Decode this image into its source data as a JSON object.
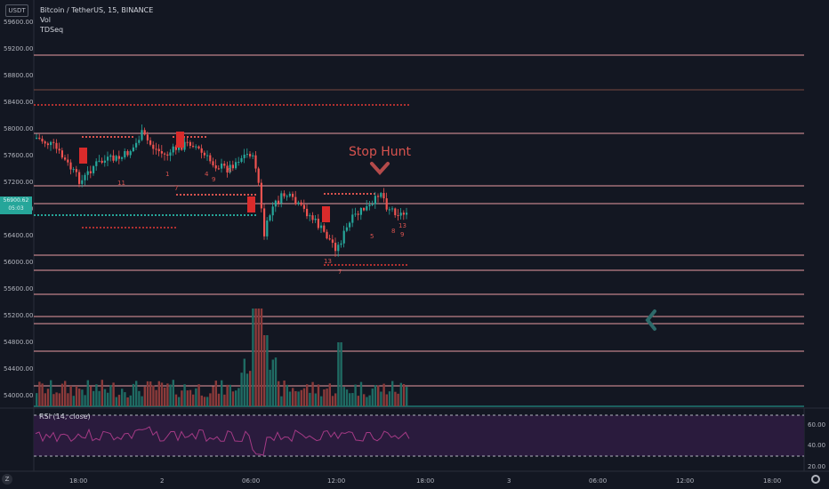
{
  "legend": {
    "symbol": "Bitcoin / TetherUS, 15, BINANCE",
    "vol": "Vol",
    "indicator": "TDSeq"
  },
  "axis_currency_button": "USDT",
  "price_axis": [
    "59600.00",
    "59200.00",
    "58800.00",
    "58400.00",
    "58000.00",
    "57600.00",
    "57200.00",
    "56800.00",
    "56400.00",
    "56000.00",
    "55600.00",
    "55200.00",
    "54800.00",
    "54400.00",
    "54000.00"
  ],
  "current_price": {
    "price": "56900.62",
    "countdown": "05:03"
  },
  "annotation": "Stop Hunt",
  "rsi": {
    "label": "RSI (14, close)",
    "axis": [
      "60.00",
      "40.00",
      "20.00"
    ]
  },
  "time_axis": [
    "18:00",
    "2",
    "06:00",
    "12:00",
    "18:00",
    "3",
    "06:00",
    "12:00",
    "18:00"
  ],
  "z_button": "Z",
  "td_numbers": [
    "11",
    "1",
    "7",
    "4",
    "9",
    "9",
    "13",
    "7",
    "5",
    "8",
    "9",
    "13"
  ],
  "colors": {
    "bg": "#131722",
    "up": "#26a69a",
    "down": "#ef5350",
    "level_line": "#e89ba2",
    "rsi_line": "#a53a86",
    "rsi_band": "#2a1b3d",
    "annotation": "#d9534f"
  },
  "icons": [
    "settings-gear-icon",
    "chevron-left-icon",
    "chevron-down-icon"
  ]
}
